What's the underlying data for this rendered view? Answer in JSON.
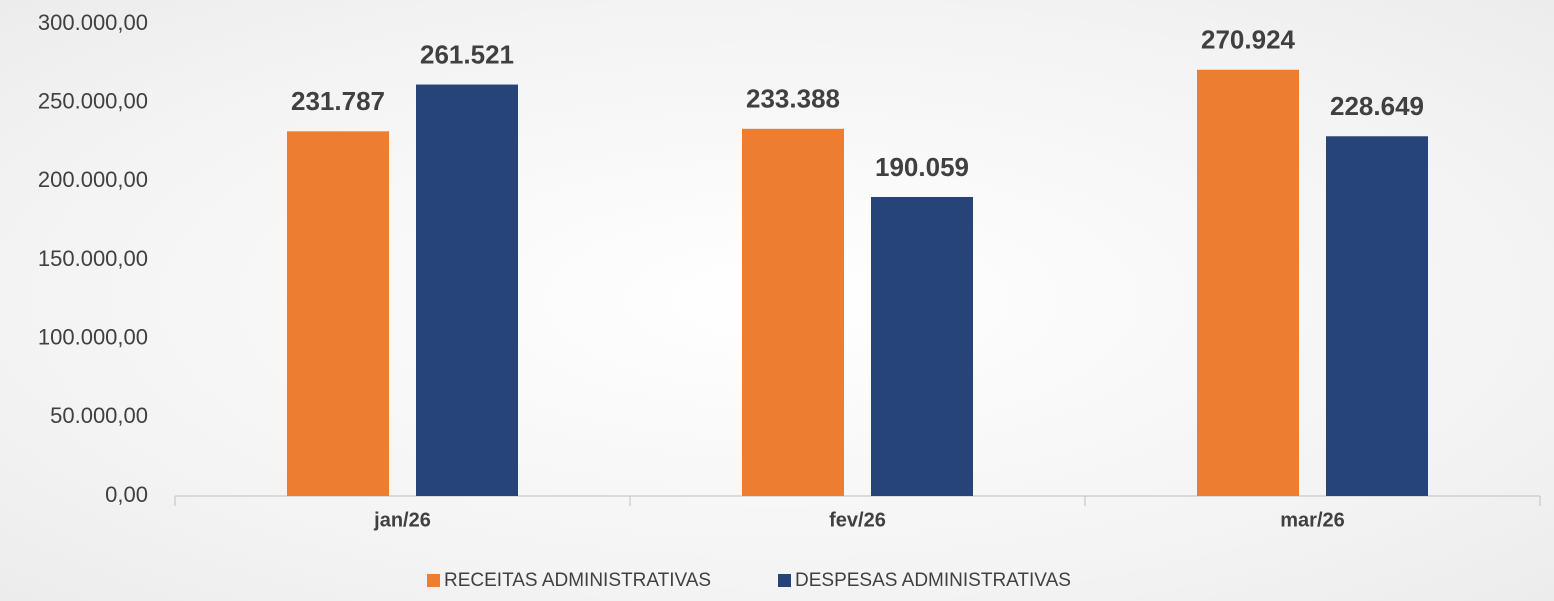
{
  "chart_data": {
    "type": "bar",
    "categories": [
      "jan/26",
      "fev/26",
      "mar/26"
    ],
    "series": [
      {
        "name": "RECEITAS ADMINISTRATIVAS",
        "color": "#ed7d31",
        "values": [
          231787,
          233388,
          270924
        ],
        "value_labels": [
          "231.787",
          "233.388",
          "270.924"
        ]
      },
      {
        "name": "DESPESAS ADMINISTRATIVAS",
        "color": "#264478",
        "values": [
          261521,
          190059,
          228649
        ],
        "value_labels": [
          "261.521",
          "190.059",
          "228.649"
        ]
      }
    ],
    "ylim": [
      0,
      300000
    ],
    "yticks": [
      {
        "value": 0,
        "label": "0,00"
      },
      {
        "value": 50000,
        "label": "50.000,00"
      },
      {
        "value": 100000,
        "label": "100.000,00"
      },
      {
        "value": 150000,
        "label": "150.000,00"
      },
      {
        "value": 200000,
        "label": "200.000,00"
      },
      {
        "value": 250000,
        "label": "250.000,00"
      },
      {
        "value": 300000,
        "label": "300.000,00"
      }
    ],
    "grid": false,
    "legend": "bottom"
  }
}
